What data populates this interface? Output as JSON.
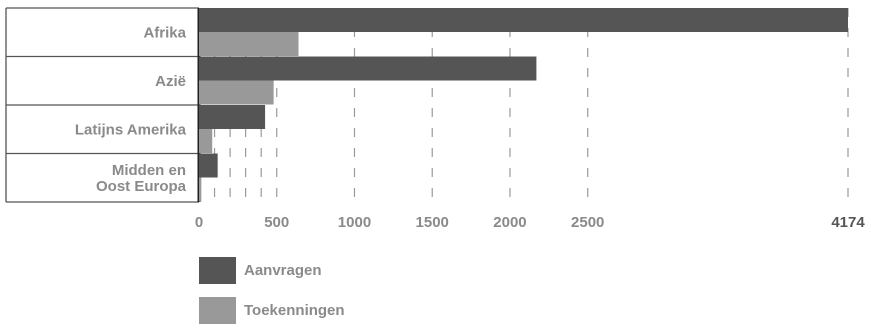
{
  "chart_data": {
    "type": "bar",
    "orientation": "horizontal",
    "categories": [
      [
        "Afrika"
      ],
      [
        "Azië"
      ],
      [
        "Latijns Amerika"
      ],
      [
        "Midden en",
        "Oost Europa"
      ]
    ],
    "series": [
      {
        "name": "Aanvragen",
        "color": "#555555",
        "values": [
          4174,
          2170,
          425,
          120
        ]
      },
      {
        "name": "Toekenningen",
        "color": "#999999",
        "values": [
          640,
          480,
          85,
          15
        ]
      }
    ],
    "xlim": [
      0,
      4174
    ],
    "x_ticks": [
      "0",
      "500",
      "1000",
      "1500",
      "2000",
      "2500",
      "4174"
    ],
    "grid": true,
    "legend_placement": "bottom-left"
  }
}
